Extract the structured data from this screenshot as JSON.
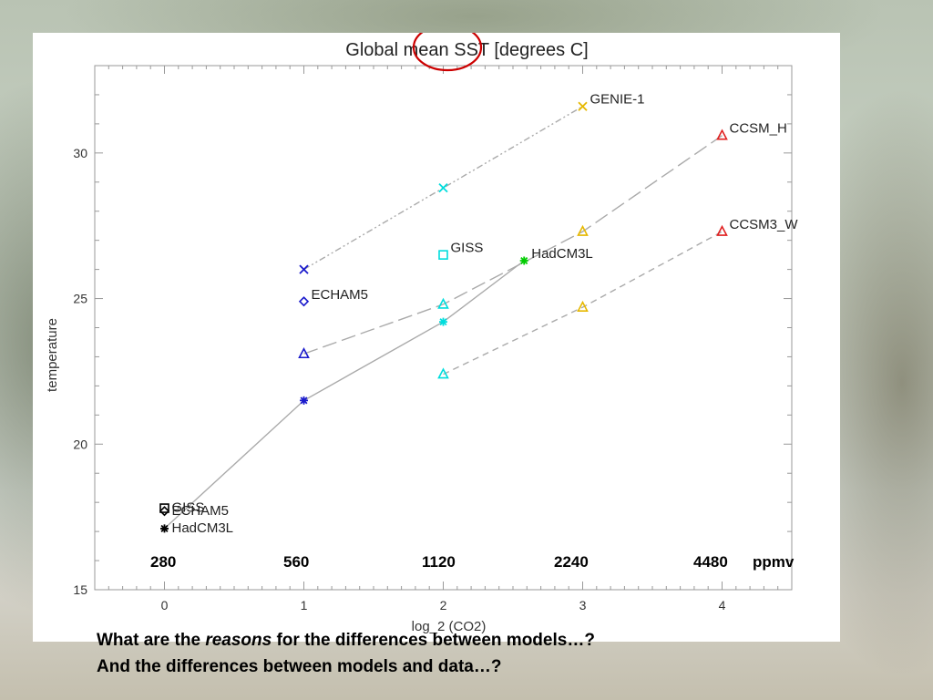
{
  "chart_data": {
    "type": "scatter",
    "title": "Global mean SST [degrees C]",
    "xlabel": "log_2 (CO2)",
    "ylabel": "temperature",
    "xlim": [
      -0.5,
      4.5
    ],
    "ylim": [
      15,
      33
    ],
    "xticks": [
      0,
      1,
      2,
      3,
      4
    ],
    "yticks": [
      15,
      20,
      25,
      30
    ],
    "grid": false,
    "series": [
      {
        "name": "GENIE-1",
        "marker": "x",
        "color": "#e6b800",
        "line": "dash-dot-dot",
        "points": [
          {
            "x": 1,
            "y": 26.0,
            "color": "#1a1acc"
          },
          {
            "x": 2,
            "y": 28.8,
            "color": "#00dddd"
          },
          {
            "x": 3,
            "y": 31.6,
            "color": "#e6b800"
          }
        ]
      },
      {
        "name": "CCSM_H",
        "marker": "triangle",
        "color": "#e02020",
        "line": "long-dash",
        "points": [
          {
            "x": 1,
            "y": 23.1,
            "color": "#1a1acc"
          },
          {
            "x": 2,
            "y": 24.8,
            "color": "#00dddd"
          },
          {
            "x": 3,
            "y": 27.3,
            "color": "#e6b800"
          },
          {
            "x": 4,
            "y": 30.6,
            "color": "#e02020"
          }
        ]
      },
      {
        "name": "CCSM3_W",
        "marker": "triangle",
        "color": "#e02020",
        "line": "dash",
        "points": [
          {
            "x": 2,
            "y": 22.4,
            "color": "#00dddd"
          },
          {
            "x": 3,
            "y": 24.7,
            "color": "#e6b800"
          },
          {
            "x": 4,
            "y": 27.3,
            "color": "#e02020"
          }
        ]
      },
      {
        "name": "HadCM3L",
        "marker": "asterisk",
        "color": "#00cc00",
        "line": "solid",
        "points": [
          {
            "x": 0,
            "y": 17.1,
            "color": "#000000"
          },
          {
            "x": 1,
            "y": 21.5,
            "color": "#1a1acc"
          },
          {
            "x": 2,
            "y": 24.2,
            "color": "#00dddd"
          },
          {
            "x": 2.58,
            "y": 26.3,
            "color": "#00cc00"
          }
        ]
      },
      {
        "name": "GISS",
        "marker": "square",
        "color": "#00dddd",
        "line": "none",
        "points": [
          {
            "x": 0,
            "y": 17.8,
            "color": "#000000"
          },
          {
            "x": 2,
            "y": 26.5,
            "color": "#00dddd"
          }
        ]
      },
      {
        "name": "ECHAM5",
        "marker": "diamond",
        "color": "#1a1acc",
        "line": "none",
        "points": [
          {
            "x": 0,
            "y": 17.7,
            "color": "#000000"
          },
          {
            "x": 1,
            "y": 24.9,
            "color": "#1a1acc"
          }
        ]
      }
    ],
    "annotations": [
      {
        "text": "GENIE-1",
        "x": 3,
        "y": 31.6
      },
      {
        "text": "CCSM_H",
        "x": 4,
        "y": 30.6
      },
      {
        "text": "CCSM3_W",
        "x": 4,
        "y": 27.3
      },
      {
        "text": "GISS",
        "x": 2,
        "y": 26.5
      },
      {
        "text": "HadCM3L",
        "x": 2.58,
        "y": 26.3
      },
      {
        "text": "ECHAM5",
        "x": 1,
        "y": 24.9
      },
      {
        "text": "GISS",
        "x": 0,
        "y": 17.8
      },
      {
        "text": "ECHAM5",
        "x": 0,
        "y": 17.7
      },
      {
        "text": "HadCM3L",
        "x": 0,
        "y": 17.1
      }
    ],
    "highlight": {
      "shape": "ellipse",
      "target": "SST",
      "color": "#cc0000"
    }
  },
  "ppmv_labels": [
    "280",
    "560",
    "1120",
    "2240",
    "4480",
    "ppmv"
  ],
  "caption": {
    "line1_start": "What are the ",
    "line1_emph": "reasons",
    "line1_end": " for the differences between models…?",
    "line2": "And the differences between models and data…?"
  }
}
